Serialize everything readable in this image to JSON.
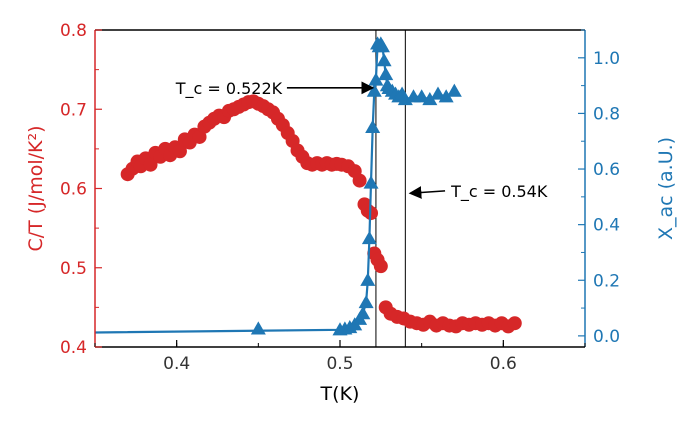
{
  "colors": {
    "left": "#d62728",
    "right": "#1f77b4",
    "axis": "#000000"
  },
  "chart_data": {
    "type": "scatter",
    "xlabel": "T(K)",
    "ylabel_left": "C/T (J/mol/K²)",
    "ylabel_right": "X_ac (a.U.)",
    "xlim": [
      0.35,
      0.65
    ],
    "ylim_left": [
      0.4,
      0.8
    ],
    "ylim_right": [
      -0.04,
      1.1
    ],
    "x_ticks": [
      0.4,
      0.5,
      0.6
    ],
    "x_tick_labels": [
      "0.4",
      "0.5",
      "0.6"
    ],
    "y_left_ticks": [
      0.4,
      0.5,
      0.6,
      0.7,
      0.8
    ],
    "y_left_tick_labels": [
      "0.4",
      "0.5",
      "0.6",
      "0.7",
      "0.8"
    ],
    "y_right_ticks": [
      0.0,
      0.2,
      0.4,
      0.6,
      0.8,
      1.0
    ],
    "y_right_tick_labels": [
      "0.0",
      "0.2",
      "0.4",
      "0.6",
      "0.8",
      "1.0"
    ],
    "vlines": [
      0.522,
      0.54
    ],
    "annotations": [
      {
        "label": "T_c = 0.522K",
        "text_x": 0.432,
        "text_y_left": 0.727,
        "arrow_to_x": 0.52,
        "arrow_to_y_left": 0.727
      },
      {
        "label": "T_c = 0.54K",
        "text_x": 0.568,
        "text_y_left": 0.597,
        "arrow_to_x": 0.543,
        "arrow_to_y_left": 0.594
      }
    ],
    "series": [
      {
        "name": "C/T",
        "axis": "left",
        "marker": "circle",
        "color": "#d62728",
        "x": [
          0.37,
          0.373,
          0.376,
          0.378,
          0.381,
          0.384,
          0.387,
          0.39,
          0.393,
          0.396,
          0.399,
          0.402,
          0.405,
          0.408,
          0.411,
          0.414,
          0.417,
          0.42,
          0.423,
          0.426,
          0.429,
          0.432,
          0.435,
          0.438,
          0.441,
          0.444,
          0.447,
          0.45,
          0.453,
          0.456,
          0.459,
          0.462,
          0.465,
          0.468,
          0.471,
          0.474,
          0.477,
          0.48,
          0.483,
          0.486,
          0.489,
          0.492,
          0.495,
          0.498,
          0.501,
          0.505,
          0.509,
          0.512,
          0.515,
          0.517,
          0.519,
          0.521,
          0.523,
          0.525,
          0.528,
          0.531,
          0.535,
          0.539,
          0.543,
          0.547,
          0.551,
          0.555,
          0.559,
          0.563,
          0.567,
          0.571,
          0.575,
          0.579,
          0.583,
          0.587,
          0.591,
          0.595,
          0.599,
          0.603,
          0.607
        ],
        "y": [
          0.618,
          0.625,
          0.634,
          0.628,
          0.638,
          0.63,
          0.645,
          0.64,
          0.65,
          0.642,
          0.652,
          0.647,
          0.662,
          0.658,
          0.668,
          0.665,
          0.678,
          0.683,
          0.688,
          0.692,
          0.69,
          0.698,
          0.7,
          0.703,
          0.706,
          0.709,
          0.71,
          0.707,
          0.704,
          0.7,
          0.696,
          0.688,
          0.68,
          0.67,
          0.66,
          0.648,
          0.64,
          0.632,
          0.63,
          0.632,
          0.63,
          0.632,
          0.63,
          0.631,
          0.63,
          0.628,
          0.622,
          0.61,
          0.58,
          0.572,
          0.569,
          0.518,
          0.51,
          0.502,
          0.45,
          0.442,
          0.438,
          0.436,
          0.432,
          0.43,
          0.428,
          0.432,
          0.427,
          0.43,
          0.427,
          0.426,
          0.43,
          0.428,
          0.43,
          0.428,
          0.43,
          0.427,
          0.43,
          0.426,
          0.43
        ]
      },
      {
        "name": "X_ac",
        "axis": "right",
        "marker": "triangle",
        "color": "#1f77b4",
        "x": [
          0.45,
          0.5,
          0.503,
          0.506,
          0.509,
          0.512,
          0.514,
          0.516,
          0.517,
          0.518,
          0.519,
          0.52,
          0.521,
          0.522,
          0.523,
          0.524,
          0.525,
          0.526,
          0.527,
          0.528,
          0.529,
          0.53,
          0.532,
          0.534,
          0.536,
          0.538,
          0.54,
          0.545,
          0.55,
          0.555,
          0.56,
          0.565,
          0.57
        ],
        "y": [
          0.025,
          0.022,
          0.025,
          0.03,
          0.04,
          0.06,
          0.08,
          0.12,
          0.2,
          0.35,
          0.55,
          0.75,
          0.88,
          0.92,
          1.05,
          1.04,
          1.05,
          1.04,
          0.99,
          0.94,
          0.9,
          0.89,
          0.88,
          0.87,
          0.86,
          0.87,
          0.85,
          0.86,
          0.86,
          0.85,
          0.87,
          0.86,
          0.88
        ],
        "line_x": [
          0.35,
          0.5,
          0.503,
          0.506,
          0.509,
          0.512,
          0.514,
          0.516,
          0.517,
          0.518,
          0.519,
          0.52,
          0.521,
          0.522,
          0.523,
          0.524,
          0.525,
          0.526,
          0.527,
          0.528,
          0.529,
          0.53,
          0.532,
          0.534,
          0.536,
          0.538,
          0.54,
          0.545,
          0.55,
          0.555,
          0.56,
          0.565,
          0.57
        ],
        "line_y": [
          0.012,
          0.022,
          0.025,
          0.03,
          0.04,
          0.06,
          0.08,
          0.12,
          0.2,
          0.35,
          0.55,
          0.75,
          0.88,
          0.92,
          1.05,
          1.04,
          1.05,
          1.04,
          0.99,
          0.94,
          0.9,
          0.89,
          0.88,
          0.87,
          0.86,
          0.87,
          0.85,
          0.86,
          0.86,
          0.85,
          0.87,
          0.86,
          0.88
        ]
      }
    ]
  }
}
